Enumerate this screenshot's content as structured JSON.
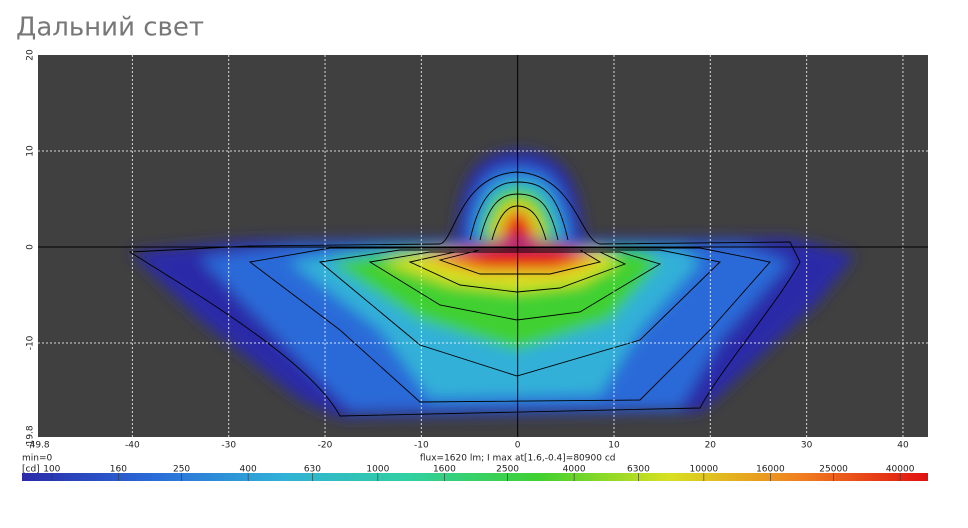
{
  "title": "Дальний свет",
  "chart_data": {
    "type": "contour",
    "xlim": [
      -49.8,
      42.6
    ],
    "xticks": [
      -49.8,
      -40,
      -30,
      -20,
      -10,
      0,
      10,
      20,
      30,
      40
    ],
    "ylim": [
      -19.8,
      20
    ],
    "yticks": [
      -19.8,
      -10,
      0,
      10,
      20
    ],
    "grid": true,
    "annotations": [
      "min=0",
      "flux=1620 lm; I max at[1.6,-0.4]=80900 cd"
    ],
    "colorbar": {
      "label": "[cd]",
      "log": true,
      "lim": [
        81,
        48700
      ],
      "ticks": [
        100,
        160,
        250,
        400,
        630,
        1000,
        1600,
        2500,
        4000,
        6300,
        10000,
        16000,
        25000,
        40000
      ],
      "colors": [
        "#2a2aa8",
        "#2a6ad8",
        "#30b0d8",
        "#30d0a0",
        "#40d030",
        "#d8e020",
        "#f08020",
        "#e01010"
      ]
    }
  }
}
